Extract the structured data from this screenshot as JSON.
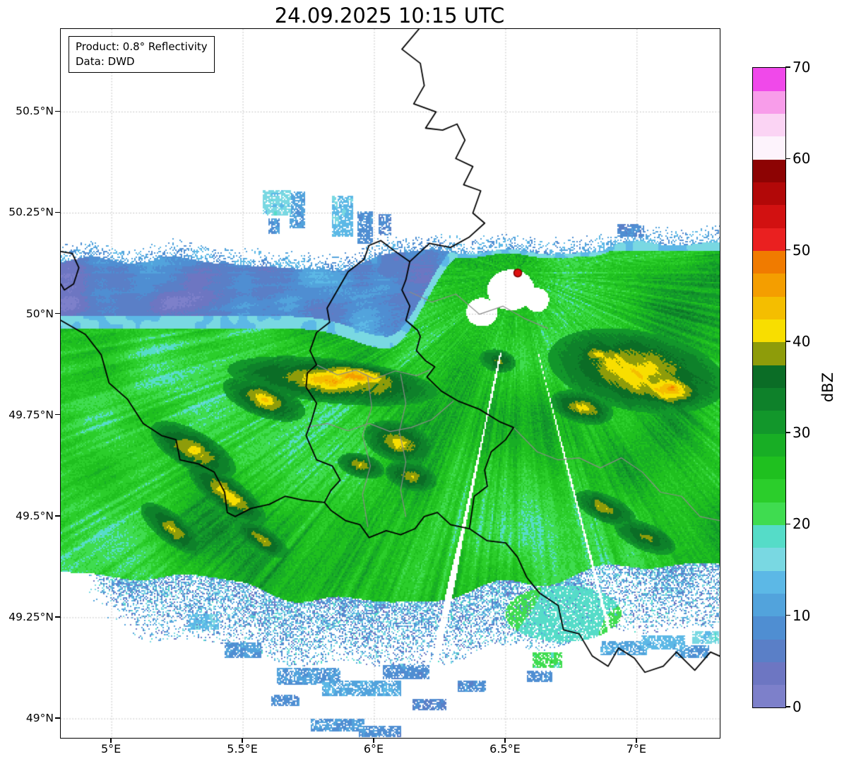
{
  "figure": {
    "title": "24.09.2025 10:15 UTC"
  },
  "annotation_box": {
    "product": "Product: 0.8° Reflectivity",
    "source": "Data: DWD"
  },
  "axes": {
    "x": {
      "tick_labels": [
        "5°E",
        "5.5°E",
        "6°E",
        "6.5°E",
        "7°E"
      ],
      "tick_values": [
        5,
        5.5,
        6,
        6.5,
        7
      ]
    },
    "y": {
      "tick_labels": [
        "49°N",
        "49.25°N",
        "49.5°N",
        "49.75°N",
        "50°N",
        "50.25°N",
        "50.5°N"
      ],
      "tick_values": [
        49,
        49.25,
        49.5,
        49.75,
        50,
        50.25,
        50.5
      ]
    },
    "extent": {
      "lon_min": 4.806,
      "lon_max": 7.315,
      "lat_min": 48.953,
      "lat_max": 50.705
    },
    "grid": "dotted"
  },
  "colorbar": {
    "label": "dBZ",
    "tick_labels": [
      "0",
      "10",
      "20",
      "30",
      "40",
      "50",
      "60",
      "70"
    ],
    "tick_values": [
      0,
      10,
      20,
      30,
      40,
      50,
      60,
      70
    ],
    "vmin": 0,
    "vmax": 70,
    "stops": [
      [
        0,
        "#7d80ca"
      ],
      [
        2.5,
        "#6d76c2"
      ],
      [
        5,
        "#5a7fc7"
      ],
      [
        7.5,
        "#4f8ed2"
      ],
      [
        10,
        "#52a3dc"
      ],
      [
        12.5,
        "#5cb8e6"
      ],
      [
        15,
        "#79d8e2"
      ],
      [
        17.5,
        "#55dcc8"
      ],
      [
        20,
        "#3fdc50"
      ],
      [
        22.5,
        "#2bce2b"
      ],
      [
        25,
        "#1fc01f"
      ],
      [
        27.5,
        "#18ae25"
      ],
      [
        30,
        "#12972b"
      ],
      [
        32.5,
        "#0e812a"
      ],
      [
        35,
        "#0b6d26"
      ],
      [
        37.5,
        "#8e9c0a"
      ],
      [
        40,
        "#f8de00"
      ],
      [
        42.5,
        "#f4be00"
      ],
      [
        45,
        "#f49e00"
      ],
      [
        47.5,
        "#f07b00"
      ],
      [
        50,
        "#ea2020"
      ],
      [
        52.5,
        "#d21111"
      ],
      [
        55,
        "#b20808"
      ],
      [
        57.5,
        "#8d0303"
      ],
      [
        60,
        "#fdf3fc"
      ],
      [
        62.5,
        "#fbd4f4"
      ],
      [
        65,
        "#f89dea"
      ],
      [
        67.5,
        "#f049ea"
      ]
    ]
  },
  "chart_data": {
    "type": "heatmap",
    "title": "24.09.2025 10:15 UTC",
    "product": "0.8° Reflectivity",
    "data_source": "DWD",
    "units": "dBZ",
    "value_range": [
      0,
      70
    ],
    "lon_range": [
      4.806,
      7.315
    ],
    "lat_range": [
      48.953,
      50.705
    ],
    "radar_site": {
      "lon": 6.546,
      "lat": 50.102,
      "marker": "red-dot"
    },
    "field_model": {
      "radar": {
        "lon": 6.546,
        "lat": 50.102
      },
      "aspect": 0.65,
      "base_dbz": 25.5,
      "echo_top_base": 50.125,
      "echo_top_rise": {
        "from": 5.9,
        "to": 6.3,
        "amount": 0.035
      },
      "green_top_base": 49.965,
      "green_top_dip": {
        "center": 6.05,
        "width": 0.18,
        "amount": 0.05
      },
      "green_top_rise": {
        "from": 6.05,
        "to": 6.35,
        "amount": 0.19
      },
      "green_bottom_base": 49.36,
      "green_bottom_dip": {
        "center": 6.05,
        "width": 0.55,
        "amount": 0.075
      },
      "green_bottom_rise": {
        "from": 6.6,
        "to": 7.2,
        "amount": 0.03
      },
      "cyan_band_depth": 0.16,
      "band_range_fade": [
        1.22,
        1.34
      ],
      "holes": [
        [
          6.52,
          50.06,
          0.09,
          0.05
        ],
        [
          6.41,
          50.005,
          0.06,
          0.035
        ],
        [
          6.62,
          50.035,
          0.045,
          0.03
        ]
      ],
      "spokes": [
        {
          "angle": -1.781,
          "width": 0.011
        },
        {
          "angle": -1.32,
          "width": 0.006
        }
      ],
      "green_patch_bottom": [
        6.72,
        49.26,
        0.22,
        0.07
      ],
      "specks": [
        [
          5.63,
          50.275,
          0.055,
          0.03,
          16
        ],
        [
          5.705,
          50.258,
          0.03,
          0.045,
          11
        ],
        [
          5.62,
          50.218,
          0.022,
          0.018,
          9
        ],
        [
          5.88,
          50.243,
          0.04,
          0.05,
          14
        ],
        [
          5.965,
          50.215,
          0.028,
          0.04,
          9
        ],
        [
          6.04,
          50.222,
          0.022,
          0.026,
          8
        ],
        [
          6.97,
          50.208,
          0.045,
          0.016,
          8
        ],
        [
          5.75,
          49.105,
          0.12,
          0.02,
          10
        ],
        [
          5.95,
          49.075,
          0.15,
          0.02,
          12
        ],
        [
          6.12,
          49.115,
          0.09,
          0.018,
          9
        ],
        [
          5.66,
          49.045,
          0.055,
          0.015,
          9
        ],
        [
          5.86,
          48.985,
          0.1,
          0.015,
          10
        ],
        [
          6.02,
          48.968,
          0.08,
          0.014,
          9
        ],
        [
          6.21,
          49.035,
          0.065,
          0.015,
          8
        ],
        [
          6.37,
          49.08,
          0.055,
          0.015,
          9
        ],
        [
          6.63,
          49.105,
          0.05,
          0.015,
          9
        ],
        [
          6.66,
          49.145,
          0.055,
          0.018,
          21
        ],
        [
          6.95,
          49.175,
          0.09,
          0.018,
          12
        ],
        [
          7.1,
          49.19,
          0.085,
          0.018,
          14
        ],
        [
          7.21,
          49.165,
          0.065,
          0.016,
          10
        ],
        [
          7.26,
          49.2,
          0.05,
          0.016,
          16
        ],
        [
          5.5,
          49.17,
          0.07,
          0.018,
          10
        ],
        [
          5.35,
          49.24,
          0.06,
          0.018,
          15
        ]
      ],
      "blobs": [
        [
          5.84,
          49.835,
          0.4,
          0.055,
          -4,
          44
        ],
        [
          5.93,
          49.845,
          0.2,
          0.035,
          -4,
          47.5
        ],
        [
          5.58,
          49.79,
          0.16,
          0.045,
          -12,
          41
        ],
        [
          5.31,
          49.665,
          0.17,
          0.05,
          -18,
          42.5
        ],
        [
          5.44,
          49.555,
          0.16,
          0.045,
          -24,
          42.5
        ],
        [
          5.23,
          49.47,
          0.13,
          0.04,
          -24,
          41
        ],
        [
          5.57,
          49.445,
          0.11,
          0.032,
          -20,
          40.5
        ],
        [
          6.09,
          49.685,
          0.13,
          0.05,
          -8,
          41.5
        ],
        [
          6.14,
          49.6,
          0.1,
          0.035,
          -8,
          40
        ],
        [
          5.95,
          49.625,
          0.09,
          0.03,
          -8,
          40
        ],
        [
          7.0,
          49.86,
          0.34,
          0.1,
          -6,
          43
        ],
        [
          7.12,
          49.815,
          0.15,
          0.05,
          -6,
          47
        ],
        [
          7.135,
          49.82,
          0.03,
          0.013,
          0,
          51.5
        ],
        [
          6.79,
          49.77,
          0.12,
          0.04,
          -8,
          41
        ],
        [
          6.88,
          49.52,
          0.12,
          0.035,
          -14,
          41
        ],
        [
          7.03,
          49.45,
          0.12,
          0.035,
          -14,
          40
        ],
        [
          6.47,
          49.885,
          0.07,
          0.028,
          -6,
          40
        ],
        [
          6.85,
          49.9,
          0.1,
          0.03,
          -6,
          41
        ]
      ]
    },
    "borders": {
      "national": [
        [
          [
            6.17,
            50.705
          ],
          [
            6.105,
            50.655
          ],
          [
            6.175,
            50.62
          ],
          [
            6.19,
            50.565
          ],
          [
            6.15,
            50.52
          ],
          [
            6.235,
            50.5
          ],
          [
            6.195,
            50.46
          ],
          [
            6.26,
            50.455
          ],
          [
            6.315,
            50.47
          ],
          [
            6.345,
            50.43
          ],
          [
            6.31,
            50.385
          ],
          [
            6.375,
            50.365
          ],
          [
            6.34,
            50.32
          ],
          [
            6.405,
            50.305
          ],
          [
            6.375,
            50.25
          ],
          [
            6.42,
            50.225
          ],
          [
            6.36,
            50.19
          ],
          [
            6.29,
            50.165
          ],
          [
            6.21,
            50.175
          ],
          [
            6.135,
            50.13
          ]
        ],
        [
          [
            6.135,
            50.13
          ],
          [
            6.12,
            50.085
          ],
          [
            6.105,
            50.06
          ],
          [
            6.135,
            50.02
          ],
          [
            6.12,
            49.985
          ],
          [
            6.165,
            49.96
          ],
          [
            6.175,
            49.945
          ],
          [
            6.16,
            49.91
          ],
          [
            6.195,
            49.885
          ],
          [
            6.23,
            49.87
          ],
          [
            6.2,
            49.845
          ],
          [
            6.255,
            49.81
          ],
          [
            6.32,
            49.785
          ],
          [
            6.4,
            49.765
          ],
          [
            6.475,
            49.735
          ],
          [
            6.53,
            49.72
          ],
          [
            6.5,
            49.69
          ],
          [
            6.445,
            49.66
          ],
          [
            6.42,
            49.615
          ],
          [
            6.43,
            49.575
          ],
          [
            6.38,
            49.55
          ],
          [
            6.37,
            49.505
          ],
          [
            6.362,
            49.47
          ],
          [
            6.29,
            49.48
          ],
          [
            6.24,
            49.51
          ],
          [
            6.19,
            49.5
          ],
          [
            6.155,
            49.47
          ],
          [
            6.1,
            49.455
          ],
          [
            6.045,
            49.465
          ],
          [
            5.98,
            49.448
          ],
          [
            5.945,
            49.48
          ],
          [
            5.89,
            49.49
          ],
          [
            5.835,
            49.515
          ],
          [
            5.81,
            49.535
          ],
          [
            5.835,
            49.565
          ],
          [
            5.87,
            49.59
          ],
          [
            5.84,
            49.625
          ],
          [
            5.78,
            49.64
          ],
          [
            5.74,
            49.7
          ],
          [
            5.76,
            49.735
          ],
          [
            5.78,
            49.78
          ],
          [
            5.74,
            49.82
          ],
          [
            5.745,
            49.855
          ],
          [
            5.78,
            49.875
          ],
          [
            5.755,
            49.91
          ],
          [
            5.78,
            49.955
          ],
          [
            5.83,
            49.98
          ],
          [
            5.82,
            50.015
          ],
          [
            5.86,
            50.06
          ],
          [
            5.9,
            50.105
          ],
          [
            5.96,
            50.135
          ],
          [
            5.98,
            50.17
          ],
          [
            6.025,
            50.182
          ],
          [
            6.08,
            50.155
          ],
          [
            6.135,
            50.13
          ]
        ],
        [
          [
            4.806,
            49.985
          ],
          [
            4.9,
            49.95
          ],
          [
            4.96,
            49.9
          ],
          [
            4.99,
            49.83
          ],
          [
            5.06,
            49.79
          ],
          [
            5.12,
            49.73
          ],
          [
            5.19,
            49.7
          ],
          [
            5.245,
            49.69
          ],
          [
            5.26,
            49.64
          ],
          [
            5.33,
            49.63
          ],
          [
            5.39,
            49.61
          ],
          [
            5.43,
            49.56
          ],
          [
            5.44,
            49.51
          ],
          [
            5.47,
            49.5
          ],
          [
            5.53,
            49.52
          ],
          [
            5.6,
            49.53
          ],
          [
            5.66,
            49.55
          ],
          [
            5.73,
            49.54
          ],
          [
            5.81,
            49.535
          ]
        ],
        [
          [
            4.806,
            50.155
          ],
          [
            4.85,
            50.15
          ],
          [
            4.875,
            50.115
          ],
          [
            4.855,
            50.075
          ],
          [
            4.82,
            50.06
          ],
          [
            4.806,
            50.075
          ]
        ],
        [
          [
            6.362,
            49.47
          ],
          [
            6.43,
            49.44
          ],
          [
            6.5,
            49.435
          ],
          [
            6.545,
            49.4
          ],
          [
            6.58,
            49.35
          ],
          [
            6.63,
            49.31
          ],
          [
            6.7,
            49.28
          ],
          [
            6.72,
            49.22
          ],
          [
            6.78,
            49.21
          ],
          [
            6.83,
            49.155
          ],
          [
            6.89,
            49.13
          ],
          [
            6.93,
            49.175
          ],
          [
            6.99,
            49.15
          ],
          [
            7.03,
            49.115
          ],
          [
            7.1,
            49.13
          ],
          [
            7.15,
            49.165
          ],
          [
            7.22,
            49.12
          ],
          [
            7.28,
            49.165
          ],
          [
            7.315,
            49.155
          ]
        ]
      ],
      "regional": [
        [
          [
            5.78,
            49.875
          ],
          [
            5.86,
            49.85
          ],
          [
            5.93,
            49.862
          ],
          [
            6.0,
            49.84
          ],
          [
            6.08,
            49.86
          ],
          [
            6.16,
            49.848
          ],
          [
            6.21,
            49.862
          ]
        ],
        [
          [
            5.74,
            49.72
          ],
          [
            5.82,
            49.73
          ],
          [
            5.9,
            49.712
          ],
          [
            5.98,
            49.73
          ],
          [
            6.06,
            49.71
          ],
          [
            6.14,
            49.72
          ],
          [
            6.22,
            49.74
          ],
          [
            6.3,
            49.785
          ]
        ],
        [
          [
            5.975,
            49.845
          ],
          [
            5.99,
            49.77
          ],
          [
            5.955,
            49.7
          ],
          [
            5.985,
            49.625
          ],
          [
            5.955,
            49.555
          ],
          [
            5.975,
            49.475
          ]
        ],
        [
          [
            6.1,
            49.852
          ],
          [
            6.12,
            49.78
          ],
          [
            6.095,
            49.71
          ],
          [
            6.12,
            49.635
          ],
          [
            6.1,
            49.565
          ],
          [
            6.12,
            49.5
          ]
        ],
        [
          [
            6.53,
            49.72
          ],
          [
            6.62,
            49.66
          ],
          [
            6.7,
            49.64
          ],
          [
            6.78,
            49.645
          ],
          [
            6.86,
            49.62
          ],
          [
            6.94,
            49.645
          ],
          [
            7.02,
            49.61
          ],
          [
            7.09,
            49.56
          ],
          [
            7.17,
            49.55
          ],
          [
            7.24,
            49.5
          ],
          [
            7.315,
            49.49
          ]
        ],
        [
          [
            6.135,
            50.055
          ],
          [
            6.22,
            50.03
          ],
          [
            6.31,
            50.05
          ],
          [
            6.4,
            50.0
          ],
          [
            6.49,
            50.02
          ],
          [
            6.57,
            49.99
          ],
          [
            6.66,
            49.965
          ]
        ]
      ]
    }
  }
}
